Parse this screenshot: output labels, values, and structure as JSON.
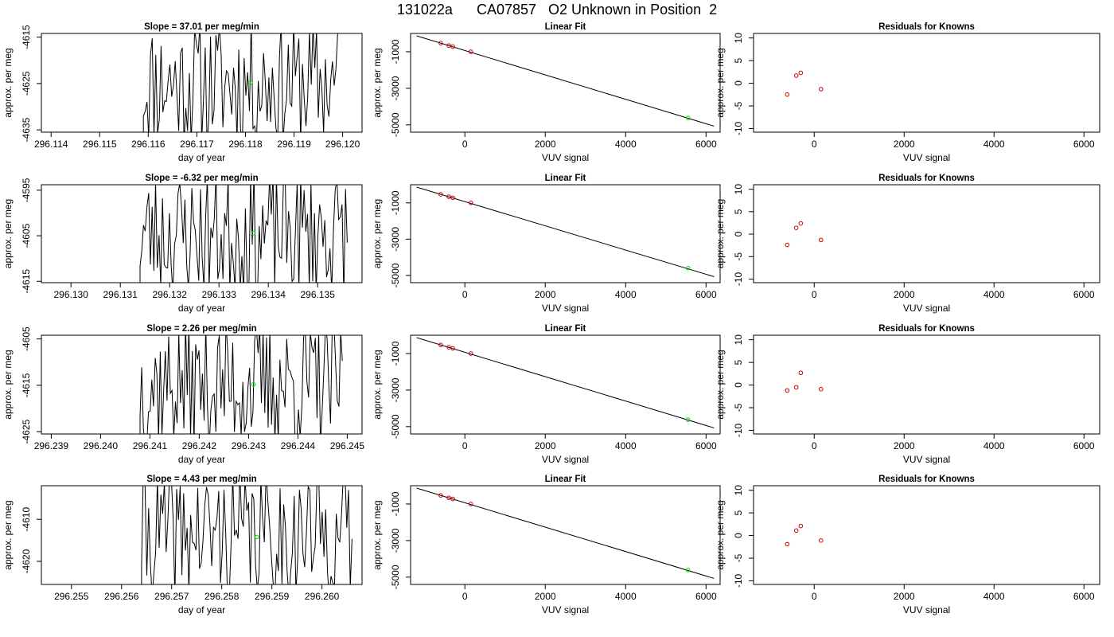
{
  "page": {
    "title": "131022a      CA07857   O2 Unknown in Position  2"
  },
  "colors": {
    "trace": "#000000",
    "unknown_point": "#00dd00",
    "known_point": "#cc0000",
    "fit_line": "#000000"
  },
  "chart_data": [
    {
      "type": "line",
      "id": "timeseries-row1",
      "title": "Slope =  37.01  per meg/min",
      "xlabel": "day of year",
      "ylabel": "approx. per meg",
      "xlim": [
        296.1138,
        296.1204
      ],
      "ylim": [
        -4635.5,
        -4614.2
      ],
      "xticks": [
        296.114,
        296.115,
        296.116,
        296.117,
        296.118,
        296.119,
        296.12
      ],
      "xtick_labels": [
        "296.114",
        "296.115",
        "296.116",
        "296.117",
        "296.118",
        "296.119",
        "296.120"
      ],
      "yticks": [
        -4635,
        -4625,
        -4615
      ],
      "trace": {
        "x_start": 296.1159,
        "x_end": 296.1199,
        "n": 110,
        "seed": 11
      },
      "marker": {
        "x": 296.1181,
        "y": -4624.8
      }
    },
    {
      "type": "line",
      "id": "fit-row1",
      "title": "Linear Fit",
      "xlabel": "VUV signal",
      "ylabel": "approx. per meg",
      "xlim": [
        -1350,
        6350
      ],
      "ylim": [
        -5400,
        0
      ],
      "xticks": [
        0,
        2000,
        4000,
        6000
      ],
      "xtick_labels": [
        "0",
        "2000",
        "4000",
        "6000"
      ],
      "yticks": [
        -5000,
        -3000,
        -1000
      ],
      "ytick_labels": [
        "-5000",
        "-3000",
        "-1000"
      ],
      "fit_line": {
        "x": [
          -1200,
          6200
        ],
        "y": [
          -130,
          -5070
        ]
      },
      "knowns": {
        "x": [
          -600,
          -400,
          -300,
          150
        ],
        "y": [
          -530,
          -660,
          -720,
          -1000
        ]
      },
      "unknown": {
        "x": 5550,
        "y": -4620
      }
    },
    {
      "type": "scatter",
      "id": "resid-row1",
      "title": "Residuals for Knowns",
      "xlabel": "VUV signal",
      "ylabel": "approx. per meg",
      "xlim": [
        -1350,
        6350
      ],
      "ylim": [
        -10.8,
        11
      ],
      "xticks": [
        0,
        2000,
        4000,
        6000
      ],
      "xtick_labels": [
        "0",
        "2000",
        "4000",
        "6000"
      ],
      "yticks": [
        -10,
        -5,
        0,
        5,
        10
      ],
      "x": [
        -600,
        -400,
        -300,
        150
      ],
      "y": [
        -2.5,
        1.7,
        2.3,
        -1.3
      ]
    },
    {
      "type": "line",
      "id": "timeseries-row2",
      "title": "Slope =  -6.32  per meg/min",
      "xlabel": "day of year",
      "ylabel": "approx. per meg",
      "xlim": [
        296.1294,
        296.1359
      ],
      "ylim": [
        -4615.3,
        -4593.8
      ],
      "xticks": [
        296.13,
        296.131,
        296.132,
        296.133,
        296.134,
        296.135
      ],
      "xtick_labels": [
        "296.130",
        "296.131",
        "296.132",
        "296.133",
        "296.134",
        "296.135"
      ],
      "yticks": [
        -4615,
        -4605,
        -4595
      ],
      "trace": {
        "x_start": 296.1314,
        "x_end": 296.1356,
        "n": 120,
        "seed": 23
      },
      "marker": {
        "x": 296.1337,
        "y": -4604.4
      }
    },
    {
      "type": "line",
      "id": "fit-row2",
      "title": "Linear Fit",
      "xlabel": "VUV signal",
      "ylabel": "approx. per meg",
      "xlim": [
        -1350,
        6350
      ],
      "ylim": [
        -5400,
        0
      ],
      "xticks": [
        0,
        2000,
        4000,
        6000
      ],
      "xtick_labels": [
        "0",
        "2000",
        "4000",
        "6000"
      ],
      "yticks": [
        -5000,
        -3000,
        -1000
      ],
      "ytick_labels": [
        "-5000",
        "-3000",
        "-1000"
      ],
      "fit_line": {
        "x": [
          -1200,
          6200
        ],
        "y": [
          -130,
          -5070
        ]
      },
      "knowns": {
        "x": [
          -600,
          -400,
          -300,
          150
        ],
        "y": [
          -530,
          -660,
          -720,
          -1000
        ]
      },
      "unknown": {
        "x": 5550,
        "y": -4600
      }
    },
    {
      "type": "scatter",
      "id": "resid-row2",
      "title": "Residuals for Knowns",
      "xlabel": "VUV signal",
      "ylabel": "approx. per meg",
      "xlim": [
        -1350,
        6350
      ],
      "ylim": [
        -10.8,
        11
      ],
      "xticks": [
        0,
        2000,
        4000,
        6000
      ],
      "xtick_labels": [
        "0",
        "2000",
        "4000",
        "6000"
      ],
      "yticks": [
        -10,
        -5,
        0,
        5,
        10
      ],
      "x": [
        -600,
        -400,
        -300,
        150
      ],
      "y": [
        -2.4,
        1.4,
        2.4,
        -1.3
      ]
    },
    {
      "type": "line",
      "id": "timeseries-row3",
      "title": "Slope =  2.26  per meg/min",
      "xlabel": "day of year",
      "ylabel": "approx. per meg",
      "xlim": [
        296.2388,
        296.2453
      ],
      "ylim": [
        -4625.5,
        -4604.2
      ],
      "xticks": [
        296.239,
        296.24,
        296.241,
        296.242,
        296.243,
        296.244,
        296.245
      ],
      "xtick_labels": [
        "296.239",
        "296.240",
        "296.241",
        "296.242",
        "296.243",
        "296.244",
        "296.245"
      ],
      "yticks": [
        -4625,
        -4615,
        -4605
      ],
      "trace": {
        "x_start": 296.2408,
        "x_end": 296.2449,
        "n": 120,
        "seed": 37
      },
      "marker": {
        "x": 296.2431,
        "y": -4614.8
      }
    },
    {
      "type": "line",
      "id": "fit-row3",
      "title": "Linear Fit",
      "xlabel": "VUV signal",
      "ylabel": "approx. per meg",
      "xlim": [
        -1350,
        6350
      ],
      "ylim": [
        -5400,
        0
      ],
      "xticks": [
        0,
        2000,
        4000,
        6000
      ],
      "xtick_labels": [
        "0",
        "2000",
        "4000",
        "6000"
      ],
      "yticks": [
        -5000,
        -3000,
        -1000
      ],
      "ytick_labels": [
        "-5000",
        "-3000",
        "-1000"
      ],
      "fit_line": {
        "x": [
          -1200,
          6200
        ],
        "y": [
          -130,
          -5070
        ]
      },
      "knowns": {
        "x": [
          -600,
          -400,
          -300,
          150
        ],
        "y": [
          -530,
          -660,
          -720,
          -1000
        ]
      },
      "unknown": {
        "x": 5550,
        "y": -4620
      }
    },
    {
      "type": "scatter",
      "id": "resid-row3",
      "title": "Residuals for Knowns",
      "xlabel": "VUV signal",
      "ylabel": "approx. per meg",
      "xlim": [
        -1350,
        6350
      ],
      "ylim": [
        -10.8,
        11
      ],
      "xticks": [
        0,
        2000,
        4000,
        6000
      ],
      "xtick_labels": [
        "0",
        "2000",
        "4000",
        "6000"
      ],
      "yticks": [
        -10,
        -5,
        0,
        5,
        10
      ],
      "x": [
        -600,
        -400,
        -300,
        150
      ],
      "y": [
        -1.2,
        -0.5,
        2.7,
        -0.9
      ]
    },
    {
      "type": "line",
      "id": "timeseries-row4",
      "title": "Slope =  4.43  per meg/min",
      "xlabel": "day of year",
      "ylabel": "approx. per meg",
      "xlim": [
        296.2544,
        296.2608
      ],
      "ylim": [
        -4625.5,
        -4602.0
      ],
      "xticks": [
        296.255,
        296.256,
        296.257,
        296.258,
        296.259,
        296.26
      ],
      "xtick_labels": [
        "296.255",
        "296.256",
        "296.257",
        "296.258",
        "296.259",
        "296.260"
      ],
      "yticks": [
        -4620,
        -4610
      ],
      "trace": {
        "x_start": 296.2564,
        "x_end": 296.2606,
        "n": 120,
        "seed": 41
      },
      "marker": {
        "x": 296.2587,
        "y": -4614.2
      }
    },
    {
      "type": "line",
      "id": "fit-row4",
      "title": "Linear Fit",
      "xlabel": "VUV signal",
      "ylabel": "approx. per meg",
      "xlim": [
        -1350,
        6350
      ],
      "ylim": [
        -5400,
        0
      ],
      "xticks": [
        0,
        2000,
        4000,
        6000
      ],
      "xtick_labels": [
        "0",
        "2000",
        "4000",
        "6000"
      ],
      "yticks": [
        -5000,
        -3000,
        -1000
      ],
      "ytick_labels": [
        "-5000",
        "-3000",
        "-1000"
      ],
      "fit_line": {
        "x": [
          -1200,
          6200
        ],
        "y": [
          -130,
          -5070
        ]
      },
      "knowns": {
        "x": [
          -600,
          -400,
          -300,
          150
        ],
        "y": [
          -530,
          -660,
          -720,
          -1000
        ]
      },
      "unknown": {
        "x": 5550,
        "y": -4610
      }
    },
    {
      "type": "scatter",
      "id": "resid-row4",
      "title": "Residuals for Knowns",
      "xlabel": "VUV signal",
      "ylabel": "approx. per meg",
      "xlim": [
        -1350,
        6350
      ],
      "ylim": [
        -10.8,
        11
      ],
      "xticks": [
        0,
        2000,
        4000,
        6000
      ],
      "xtick_labels": [
        "0",
        "2000",
        "4000",
        "6000"
      ],
      "yticks": [
        -10,
        -5,
        0,
        5,
        10
      ],
      "x": [
        -600,
        -400,
        -300,
        150
      ],
      "y": [
        -1.9,
        1.1,
        2.1,
        -1.1
      ]
    }
  ]
}
